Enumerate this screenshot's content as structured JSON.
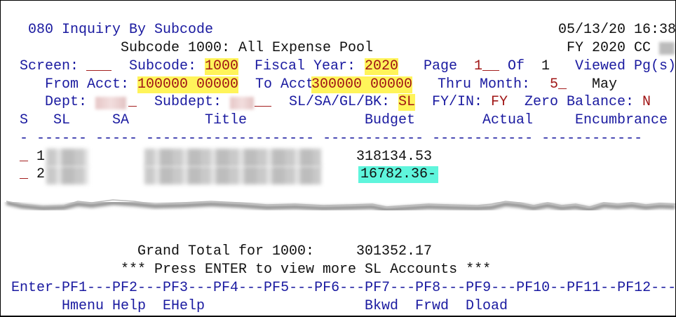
{
  "header": {
    "title": "080 Inquiry By Subcode",
    "datetime": "05/13/20 16:38",
    "subtitle": "Subcode 1000: All Expense Pool",
    "fy_cc": "FY 2020 CC"
  },
  "fields": {
    "screen_label": "Screen:",
    "screen_value": "___",
    "subcode_label": "Subcode:",
    "subcode_value": "1000",
    "fiscal_year_label": "Fiscal Year:",
    "fiscal_year_value": "2020",
    "page_label": "Page",
    "page_value": "1__",
    "of_label": "Of",
    "of_value": "1",
    "viewed_label": "Viewed Pg(s)",
    "from_acct_label": "From Acct:",
    "from_acct_value": "100000 00000",
    "to_acct_label": "To Acct:",
    "to_acct_value": "300000 00000",
    "thru_month_label": "Thru Month:",
    "thru_month_value": "5_",
    "month_name": "May",
    "dept_label": "Dept:",
    "dept_suffix": "_",
    "subdept_label": "Subdept:",
    "subdept_suffix": "__",
    "level_label": "SL/SA/GL/BK:",
    "level_value": "SL",
    "fyin_label": "FY/IN:",
    "fyin_value": "FY",
    "zero_balance_label": "Zero Balance:",
    "zero_balance_value": "N"
  },
  "table": {
    "headers": [
      "S",
      "SL",
      "SA",
      "Title",
      "Budget",
      "Actual",
      "Encumbrance"
    ],
    "divider": "- ------ ----- -------------------- ------------ ------------ ------------",
    "rows": [
      {
        "select": "_",
        "sl_prefix": "1",
        "budget": "318134.53"
      },
      {
        "select": "_",
        "sl_prefix": "2",
        "budget": "16782.36-"
      }
    ]
  },
  "footer": {
    "grand_total_label": "Grand Total for 1000:",
    "grand_total_value": "301352.17",
    "message": "*** Press ENTER to view more SL Accounts ***",
    "pf_line": "Enter-PF1---PF2---PF3---PF4---PF5---PF6---PF7---PF8---PF9---PF10--PF11--PF12---",
    "pf_keys": [
      "Hmenu",
      "Help",
      "EHelp",
      "Bkwd",
      "Frwd",
      "Dload"
    ]
  },
  "colors": {
    "label": "#1a1aa0",
    "input": "#a01616",
    "highlight": "#fff45a",
    "negative_bg": "#5ff5dc"
  }
}
